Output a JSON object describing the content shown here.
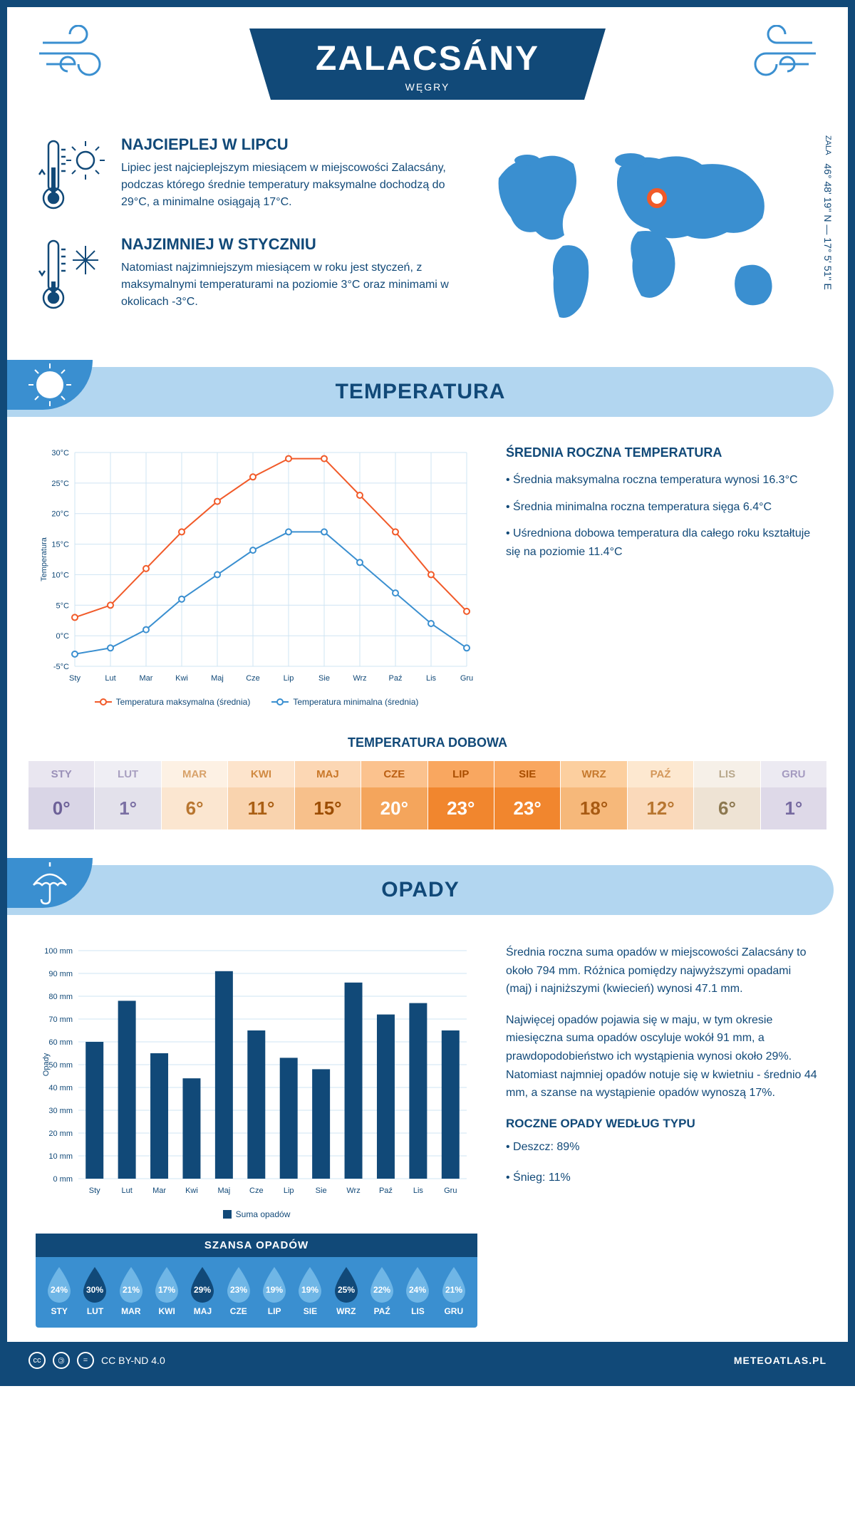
{
  "header": {
    "city": "ZALACSÁNY",
    "country": "WĘGRY"
  },
  "coords": {
    "region": "ZALA",
    "text": "46° 48' 19'' N — 17° 5' 51'' E"
  },
  "intro": {
    "hot": {
      "title": "NAJCIEPLEJ W LIPCU",
      "text": "Lipiec jest najcieplejszym miesiącem w miejscowości Zalacsány, podczas którego średnie temperatury maksymalne dochodzą do 29°C, a minimalne osiągają 17°C."
    },
    "cold": {
      "title": "NAJZIMNIEJ W STYCZNIU",
      "text": "Natomiast najzimniejszym miesiącem w roku jest styczeń, z maksymalnymi temperaturami na poziomie 3°C oraz minimami w okolicach -3°C."
    }
  },
  "temperature": {
    "section_title": "TEMPERATURA",
    "info_title": "ŚREDNIA ROCZNA TEMPERATURA",
    "bullets": [
      "• Średnia maksymalna roczna temperatura wynosi 16.3°C",
      "• Średnia minimalna roczna temperatura sięga 6.4°C",
      "• Uśredniona dobowa temperatura dla całego roku kształtuje się na poziomie 11.4°C"
    ],
    "chart": {
      "months": [
        "Sty",
        "Lut",
        "Mar",
        "Kwi",
        "Maj",
        "Cze",
        "Lip",
        "Sie",
        "Wrz",
        "Paź",
        "Lis",
        "Gru"
      ],
      "max": [
        3,
        5,
        11,
        17,
        22,
        26,
        29,
        29,
        23,
        17,
        10,
        4
      ],
      "min": [
        -3,
        -2,
        1,
        6,
        10,
        14,
        17,
        17,
        12,
        7,
        2,
        -2
      ],
      "ylabel": "Temperatura",
      "ymin": -5,
      "ymax": 30,
      "ystep": 5,
      "max_color": "#f15a29",
      "min_color": "#3a8fd0",
      "grid_color": "#cfe4f3",
      "legend_max": "Temperatura maksymalna (średnia)",
      "legend_min": "Temperatura minimalna (średnia)"
    },
    "daily": {
      "title": "TEMPERATURA DOBOWA",
      "months": [
        "STY",
        "LUT",
        "MAR",
        "KWI",
        "MAJ",
        "CZE",
        "LIP",
        "SIE",
        "WRZ",
        "PAŹ",
        "LIS",
        "GRU"
      ],
      "temps": [
        "0°",
        "1°",
        "6°",
        "11°",
        "15°",
        "20°",
        "23°",
        "23°",
        "18°",
        "12°",
        "6°",
        "1°"
      ],
      "head_colors": [
        "#e9e6f0",
        "#efeef4",
        "#fdf1e4",
        "#fde4cc",
        "#fcd7b4",
        "#fbc28e",
        "#f9a760",
        "#f9a760",
        "#fccf9f",
        "#fde8d0",
        "#f6f0e8",
        "#eceaf2"
      ],
      "body_colors": [
        "#d9d5e6",
        "#e3e1eb",
        "#fbe6d0",
        "#f9d3ae",
        "#f7c08b",
        "#f4a55c",
        "#f1862e",
        "#f1862e",
        "#f6b87a",
        "#fad9ba",
        "#eee3d4",
        "#ded9e8"
      ],
      "head_text_colors": [
        "#9a90b8",
        "#a89fc0",
        "#d8a26a",
        "#d08a42",
        "#c97728",
        "#bb5f12",
        "#a94e00",
        "#a94e00",
        "#c67a2e",
        "#d4975a",
        "#b8a88c",
        "#a49ac0"
      ],
      "body_text_colors": [
        "#6d6198",
        "#7a6fa3",
        "#b87630",
        "#aa5f14",
        "#9c4d02",
        "#ffffff",
        "#ffffff",
        "#ffffff",
        "#a85a12",
        "#b87630",
        "#8c7850",
        "#766aa0"
      ]
    }
  },
  "precip": {
    "section_title": "OPADY",
    "chart": {
      "months": [
        "Sty",
        "Lut",
        "Mar",
        "Kwi",
        "Maj",
        "Cze",
        "Lip",
        "Sie",
        "Wrz",
        "Paź",
        "Lis",
        "Gru"
      ],
      "values": [
        60,
        78,
        55,
        44,
        91,
        65,
        53,
        48,
        86,
        72,
        77,
        65
      ],
      "ylabel": "Opady",
      "ymax": 100,
      "ystep": 10,
      "bar_color": "#114978",
      "grid_color": "#cfe4f3",
      "legend": "Suma opadów"
    },
    "text1": "Średnia roczna suma opadów w miejscowości Zalacsány to około 794 mm. Różnica pomiędzy najwyższymi opadami (maj) i najniższymi (kwiecień) wynosi 47.1 mm.",
    "text2": "Najwięcej opadów pojawia się w maju, w tym okresie miesięczna suma opadów oscyluje wokół 91 mm, a prawdopodobieństwo ich wystąpienia wynosi około 29%. Natomiast najmniej opadów notuje się w kwietniu - średnio 44 mm, a szanse na wystąpienie opadów wynoszą 17%.",
    "type_title": "ROCZNE OPADY WEDŁUG TYPU",
    "types": [
      "• Deszcz: 89%",
      "• Śnieg: 11%"
    ],
    "chance": {
      "title": "SZANSA OPADÓW",
      "months": [
        "STY",
        "LUT",
        "MAR",
        "KWI",
        "MAJ",
        "CZE",
        "LIP",
        "SIE",
        "WRZ",
        "PAŹ",
        "LIS",
        "GRU"
      ],
      "values": [
        "24%",
        "30%",
        "21%",
        "17%",
        "29%",
        "23%",
        "19%",
        "19%",
        "25%",
        "22%",
        "24%",
        "21%"
      ],
      "dark": [
        false,
        true,
        false,
        false,
        true,
        false,
        false,
        false,
        true,
        false,
        false,
        false
      ],
      "light_fill": "#6fb6e6",
      "dark_fill": "#114978"
    }
  },
  "footer": {
    "license": "CC BY-ND 4.0",
    "site": "METEOATLAS.PL"
  }
}
